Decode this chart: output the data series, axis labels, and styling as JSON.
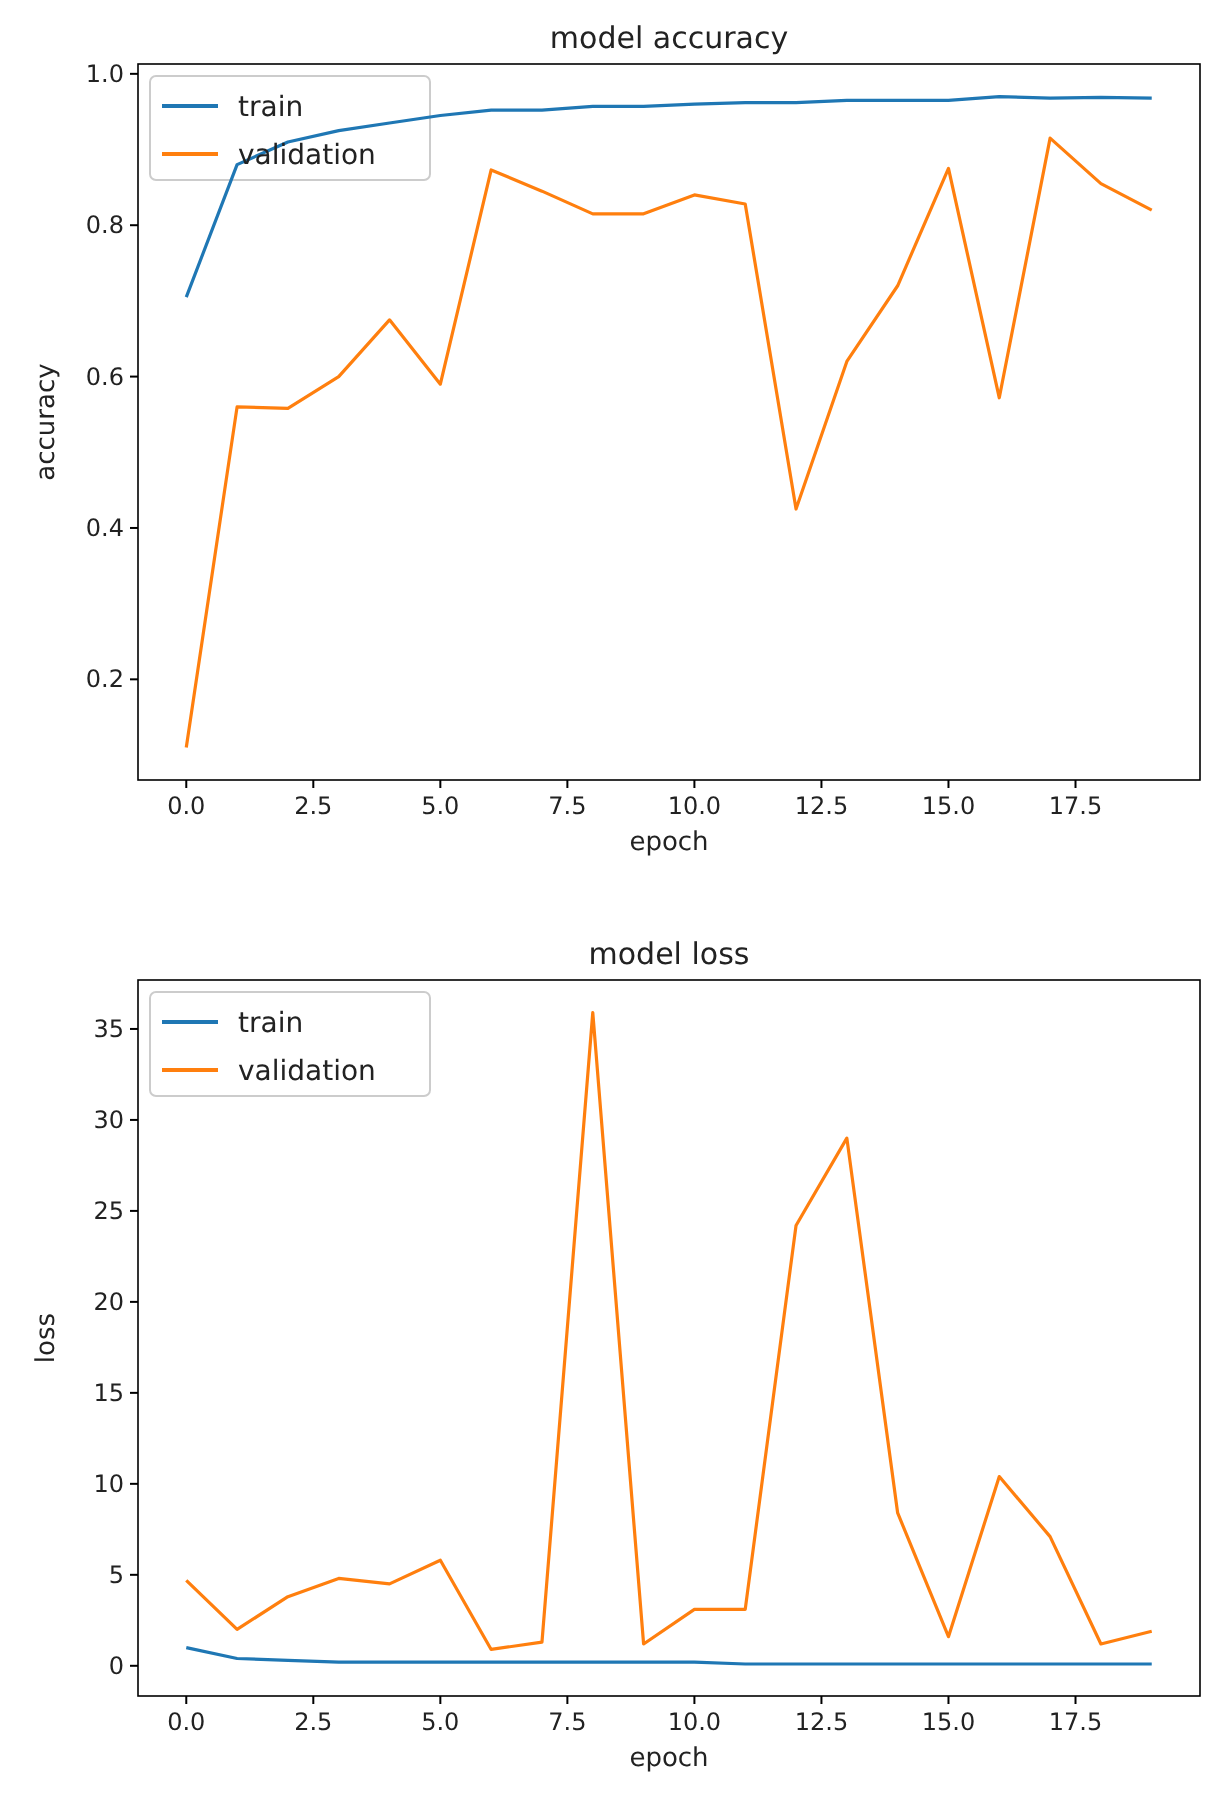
{
  "chart_data": [
    {
      "type": "line",
      "title": "model accuracy",
      "xlabel": "epoch",
      "ylabel": "accuracy",
      "x": [
        0,
        1,
        2,
        3,
        4,
        5,
        6,
        7,
        8,
        9,
        10,
        11,
        12,
        13,
        14,
        15,
        16,
        17,
        18,
        19
      ],
      "series": [
        {
          "name": "train",
          "color": "#1f77b4",
          "values": [
            0.705,
            0.88,
            0.91,
            0.925,
            0.935,
            0.945,
            0.952,
            0.952,
            0.957,
            0.957,
            0.96,
            0.962,
            0.962,
            0.965,
            0.965,
            0.965,
            0.97,
            0.968,
            0.969,
            0.968
          ]
        },
        {
          "name": "validation",
          "color": "#ff7f0e",
          "values": [
            0.11,
            0.56,
            0.558,
            0.6,
            0.675,
            0.59,
            0.873,
            0.845,
            0.815,
            0.815,
            0.84,
            0.828,
            0.425,
            0.62,
            0.72,
            0.875,
            0.572,
            0.915,
            0.855,
            0.82
          ]
        }
      ],
      "xlim": [
        -0.95,
        19.95
      ],
      "ylim": [
        0.067,
        1.013
      ],
      "xticks": [
        {
          "value": 0,
          "label": "0.0"
        },
        {
          "value": 2.5,
          "label": "2.5"
        },
        {
          "value": 5,
          "label": "5.0"
        },
        {
          "value": 7.5,
          "label": "7.5"
        },
        {
          "value": 10,
          "label": "10.0"
        },
        {
          "value": 12.5,
          "label": "12.5"
        },
        {
          "value": 15,
          "label": "15.0"
        },
        {
          "value": 17.5,
          "label": "17.5"
        }
      ],
      "yticks": [
        {
          "value": 0.2,
          "label": "0.2"
        },
        {
          "value": 0.4,
          "label": "0.4"
        },
        {
          "value": 0.6,
          "label": "0.6"
        },
        {
          "value": 0.8,
          "label": "0.8"
        },
        {
          "value": 1,
          "label": "1.0"
        }
      ],
      "legend": "top left"
    },
    {
      "type": "line",
      "title": "model loss",
      "xlabel": "epoch",
      "ylabel": "loss",
      "x": [
        0,
        1,
        2,
        3,
        4,
        5,
        6,
        7,
        8,
        9,
        10,
        11,
        12,
        13,
        14,
        15,
        16,
        17,
        18,
        19
      ],
      "series": [
        {
          "name": "train",
          "color": "#1f77b4",
          "values": [
            1.0,
            0.4,
            0.3,
            0.2,
            0.2,
            0.2,
            0.2,
            0.2,
            0.2,
            0.2,
            0.2,
            0.1,
            0.1,
            0.1,
            0.1,
            0.1,
            0.1,
            0.1,
            0.1,
            0.1
          ]
        },
        {
          "name": "validation",
          "color": "#ff7f0e",
          "values": [
            4.7,
            2.0,
            3.8,
            4.8,
            4.5,
            5.8,
            0.9,
            1.3,
            35.9,
            1.2,
            3.1,
            3.1,
            24.2,
            29.0,
            8.4,
            1.6,
            10.4,
            7.1,
            1.2,
            1.9
          ]
        }
      ],
      "xlim": [
        -0.95,
        19.95
      ],
      "ylim": [
        -1.66,
        37.69
      ],
      "xticks": [
        {
          "value": 0,
          "label": "0.0"
        },
        {
          "value": 2.5,
          "label": "2.5"
        },
        {
          "value": 5,
          "label": "5.0"
        },
        {
          "value": 7.5,
          "label": "7.5"
        },
        {
          "value": 10,
          "label": "10.0"
        },
        {
          "value": 12.5,
          "label": "12.5"
        },
        {
          "value": 15,
          "label": "15.0"
        },
        {
          "value": 17.5,
          "label": "17.5"
        }
      ],
      "yticks": [
        0,
        5,
        10,
        15,
        20,
        25,
        30,
        35
      ],
      "legend": "top left"
    }
  ]
}
